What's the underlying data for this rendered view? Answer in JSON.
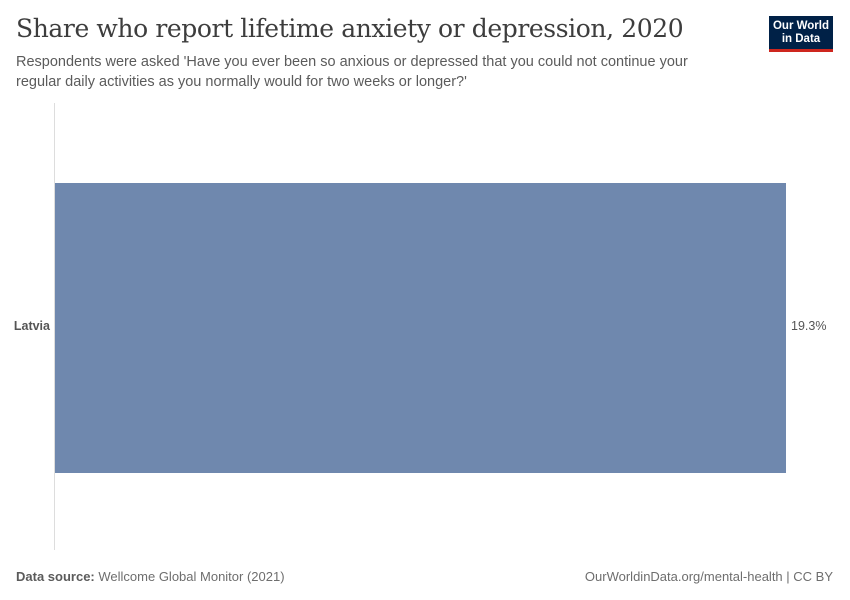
{
  "header": {
    "title": "Share who report lifetime anxiety or depression, 2020",
    "subtitle": "Respondents were asked 'Have you ever been so anxious or depressed that you could not continue your regular daily activities as you normally would for two weeks or longer?'",
    "logo_line1": "Our World",
    "logo_line2": "in Data"
  },
  "colors": {
    "bar": "#6f88ae",
    "logo_bg": "#002147",
    "logo_accent": "#ce261e"
  },
  "chart_data": {
    "type": "bar",
    "orientation": "horizontal",
    "title": "Share who report lifetime anxiety or depression, 2020",
    "subtitle": "Respondents were asked 'Have you ever been so anxious or depressed that you could not continue your regular daily activities as you normally would for two weeks or longer?'",
    "categories": [
      "Latvia"
    ],
    "values": [
      19.3
    ],
    "value_labels": [
      "19.3%"
    ],
    "unit": "%",
    "xlabel": "",
    "ylabel": "",
    "grid": false,
    "legend": null
  },
  "bars": [
    {
      "label": "Latvia",
      "value_label": "19.3%"
    }
  ],
  "footer": {
    "source_label": "Data source:",
    "source_value": "Wellcome Global Monitor (2021)",
    "url_license": "OurWorldinData.org/mental-health | CC BY"
  }
}
